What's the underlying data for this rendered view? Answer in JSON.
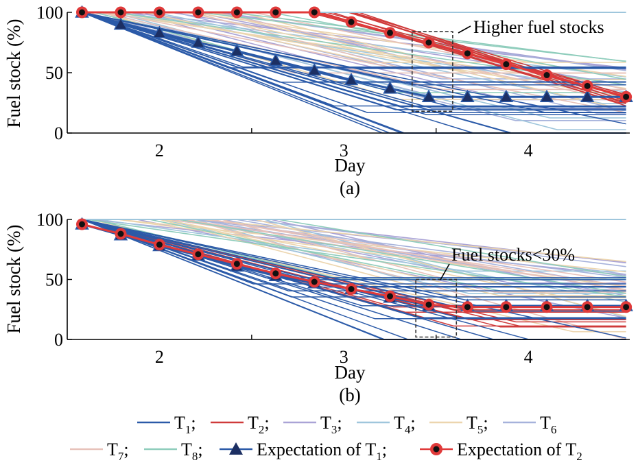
{
  "colors": {
    "T1": "#2b5aa8",
    "T2": "#cf3a3a",
    "T3": "#aaa3d6",
    "T4": "#9fc6dc",
    "T5": "#ecd5ae",
    "T6": "#a6b2db",
    "T7": "#e7c2ba",
    "T8": "#8fcdbc",
    "exp1_marker": "#1c2f63",
    "exp2_ring": "#e03a3a",
    "exp2_dot": "#111111"
  },
  "chart_data": [
    {
      "panel_label": "(a)",
      "type": "line",
      "xlabel": "Day",
      "ylabel": "Fuel stock (%)",
      "xlim": [
        1.5,
        4.55
      ],
      "ylim": [
        0,
        100
      ],
      "x_ticks": [
        2,
        3,
        4
      ],
      "y_ticks": [
        0,
        50,
        100
      ],
      "annotation": "Higher fuel stocks",
      "annotation_box": {
        "x": [
          3.37,
          3.59
        ],
        "y": [
          18,
          84
        ]
      },
      "expectation_T1": {
        "name": "Expectation of T₁",
        "x": [
          1.58,
          1.79,
          2.0,
          2.21,
          2.42,
          2.63,
          2.84,
          3.04,
          3.25,
          3.46,
          3.67,
          3.88,
          4.1,
          4.32,
          4.53
        ],
        "y": [
          100,
          90,
          83,
          75,
          68,
          60,
          52,
          44,
          37,
          30,
          30,
          30,
          30,
          30,
          30
        ]
      },
      "expectation_T2": {
        "name": "Expectation of T₂",
        "x": [
          1.58,
          1.79,
          2.0,
          2.21,
          2.42,
          2.63,
          2.84,
          3.04,
          3.25,
          3.46,
          3.67,
          3.88,
          4.1,
          4.32,
          4.53
        ],
        "y": [
          100,
          100,
          100,
          100,
          100,
          100,
          100,
          92,
          83,
          75,
          66,
          57,
          48,
          39,
          30
        ]
      }
    },
    {
      "panel_label": "(b)",
      "type": "line",
      "xlabel": "Day",
      "ylabel": "Fuel stock (%)",
      "xlim": [
        1.5,
        4.55
      ],
      "ylim": [
        0,
        100
      ],
      "x_ticks": [
        2,
        3,
        4
      ],
      "y_ticks": [
        0,
        50,
        100
      ],
      "annotation": "Fuel stocks<30%",
      "annotation_box": {
        "x": [
          3.39,
          3.61
        ],
        "y": [
          2,
          50
        ]
      },
      "expectation_T1": {
        "name": "Expectation of T₁",
        "x": [
          1.58,
          1.79,
          2.0,
          2.21,
          2.42,
          2.63,
          2.84,
          3.04,
          3.25,
          3.46,
          3.67,
          3.88,
          4.1,
          4.32,
          4.53
        ],
        "y": [
          96,
          87,
          78,
          70,
          61,
          53,
          47,
          42,
          35,
          28,
          28,
          28,
          28,
          28,
          28
        ]
      },
      "expectation_T2": {
        "name": "Expectation of T₂",
        "x": [
          1.58,
          1.79,
          2.0,
          2.21,
          2.42,
          2.63,
          2.84,
          3.04,
          3.25,
          3.46,
          3.67,
          3.88,
          4.1,
          4.32,
          4.53
        ],
        "y": [
          96,
          88,
          79,
          71,
          63,
          55,
          48,
          42,
          36,
          29,
          27,
          27,
          27,
          27,
          27
        ]
      }
    }
  ],
  "legend": {
    "row1": [
      {
        "key": "T1",
        "base": "T",
        "sub": "1",
        "sep": ";"
      },
      {
        "key": "T2",
        "base": "T",
        "sub": "2",
        "sep": ";"
      },
      {
        "key": "T3",
        "base": "T",
        "sub": "3",
        "sep": ";"
      },
      {
        "key": "T4",
        "base": "T",
        "sub": "4",
        "sep": ";"
      },
      {
        "key": "T5",
        "base": "T",
        "sub": "5",
        "sep": ";"
      },
      {
        "key": "T6",
        "base": "T",
        "sub": "6",
        "sep": ""
      }
    ],
    "row2": [
      {
        "key": "T7",
        "base": "T",
        "sub": "7",
        "sep": ";"
      },
      {
        "key": "T8",
        "base": "T",
        "sub": "8",
        "sep": ";"
      },
      {
        "key": "exp1",
        "base": "Expectation of T",
        "sub": "1",
        "sep": ";"
      },
      {
        "key": "exp2",
        "base": "Expectation of T",
        "sub": "2",
        "sep": ""
      }
    ]
  }
}
